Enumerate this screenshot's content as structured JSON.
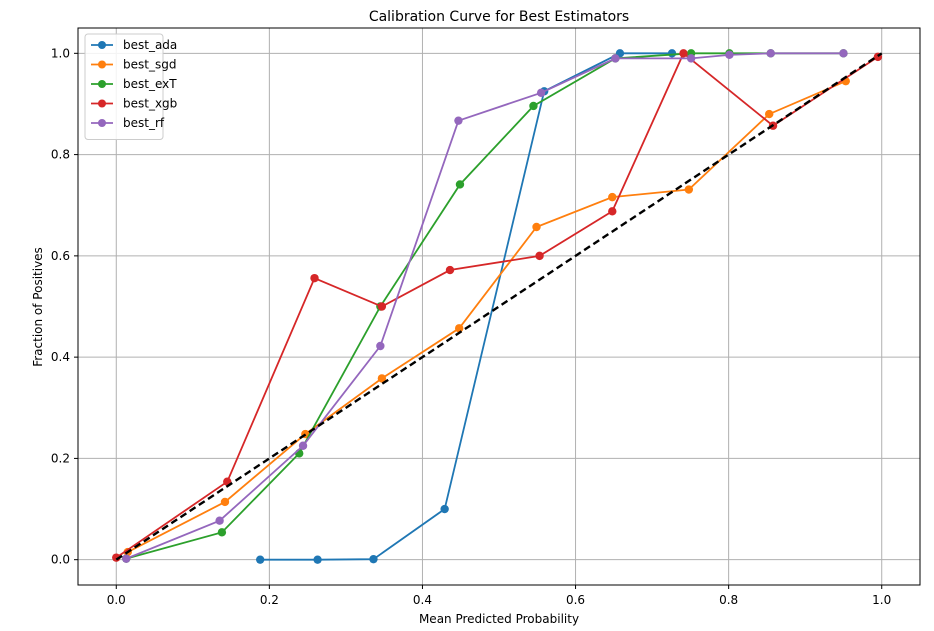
{
  "chart_data": {
    "type": "line",
    "title": "Calibration Curve for Best Estimators",
    "xlabel": "Mean Predicted Probability",
    "ylabel": "Fraction of Positives",
    "xlim": [
      -0.05,
      1.05
    ],
    "ylim": [
      -0.05,
      1.05
    ],
    "xticks": [
      0.0,
      0.2,
      0.4,
      0.6,
      0.8,
      1.0
    ],
    "yticks": [
      0.0,
      0.2,
      0.4,
      0.6,
      0.8,
      1.0
    ],
    "xtick_labels": [
      "0.0",
      "0.2",
      "0.4",
      "0.6",
      "0.8",
      "1.0"
    ],
    "ytick_labels": [
      "0.0",
      "0.2",
      "0.4",
      "0.6",
      "0.8",
      "1.0"
    ],
    "grid": true,
    "legend_position": "top-left",
    "series": [
      {
        "name": "best_ada",
        "color": "#1f77b4",
        "x": [
          0.188,
          0.263,
          0.336,
          0.429,
          0.559,
          0.658,
          0.726
        ],
        "y": [
          0.0,
          0.0,
          0.001,
          0.1,
          0.925,
          1.0,
          1.0
        ]
      },
      {
        "name": "best_sgd",
        "color": "#ff7f0e",
        "x": [
          0.015,
          0.142,
          0.247,
          0.347,
          0.448,
          0.549,
          0.648,
          0.748,
          0.853,
          0.953
        ],
        "y": [
          0.015,
          0.114,
          0.248,
          0.358,
          0.457,
          0.657,
          0.716,
          0.731,
          0.88,
          0.945
        ]
      },
      {
        "name": "best_exT",
        "color": "#2ca02c",
        "x": [
          0.013,
          0.138,
          0.239,
          0.345,
          0.449,
          0.545,
          0.652,
          0.751,
          0.801,
          0.855,
          0.95
        ],
        "y": [
          0.002,
          0.054,
          0.21,
          0.5,
          0.741,
          0.896,
          0.99,
          1.0,
          1.0,
          1.0,
          1.0
        ]
      },
      {
        "name": "best_xgb",
        "color": "#d62728",
        "x": [
          0.0,
          0.145,
          0.259,
          0.347,
          0.436,
          0.553,
          0.648,
          0.741,
          0.858,
          0.995
        ],
        "y": [
          0.004,
          0.154,
          0.556,
          0.5,
          0.572,
          0.6,
          0.688,
          1.0,
          0.857,
          0.993
        ]
      },
      {
        "name": "best_rf",
        "color": "#9467bd",
        "x": [
          0.013,
          0.135,
          0.244,
          0.345,
          0.447,
          0.555,
          0.652,
          0.751,
          0.801,
          0.855,
          0.95
        ],
        "y": [
          0.002,
          0.077,
          0.225,
          0.422,
          0.867,
          0.922,
          0.99,
          0.99,
          0.997,
          1.0,
          1.0
        ]
      }
    ],
    "reference_line": {
      "color": "#000000",
      "x": [
        0.0,
        1.0
      ],
      "y": [
        0.0,
        1.0
      ]
    }
  }
}
